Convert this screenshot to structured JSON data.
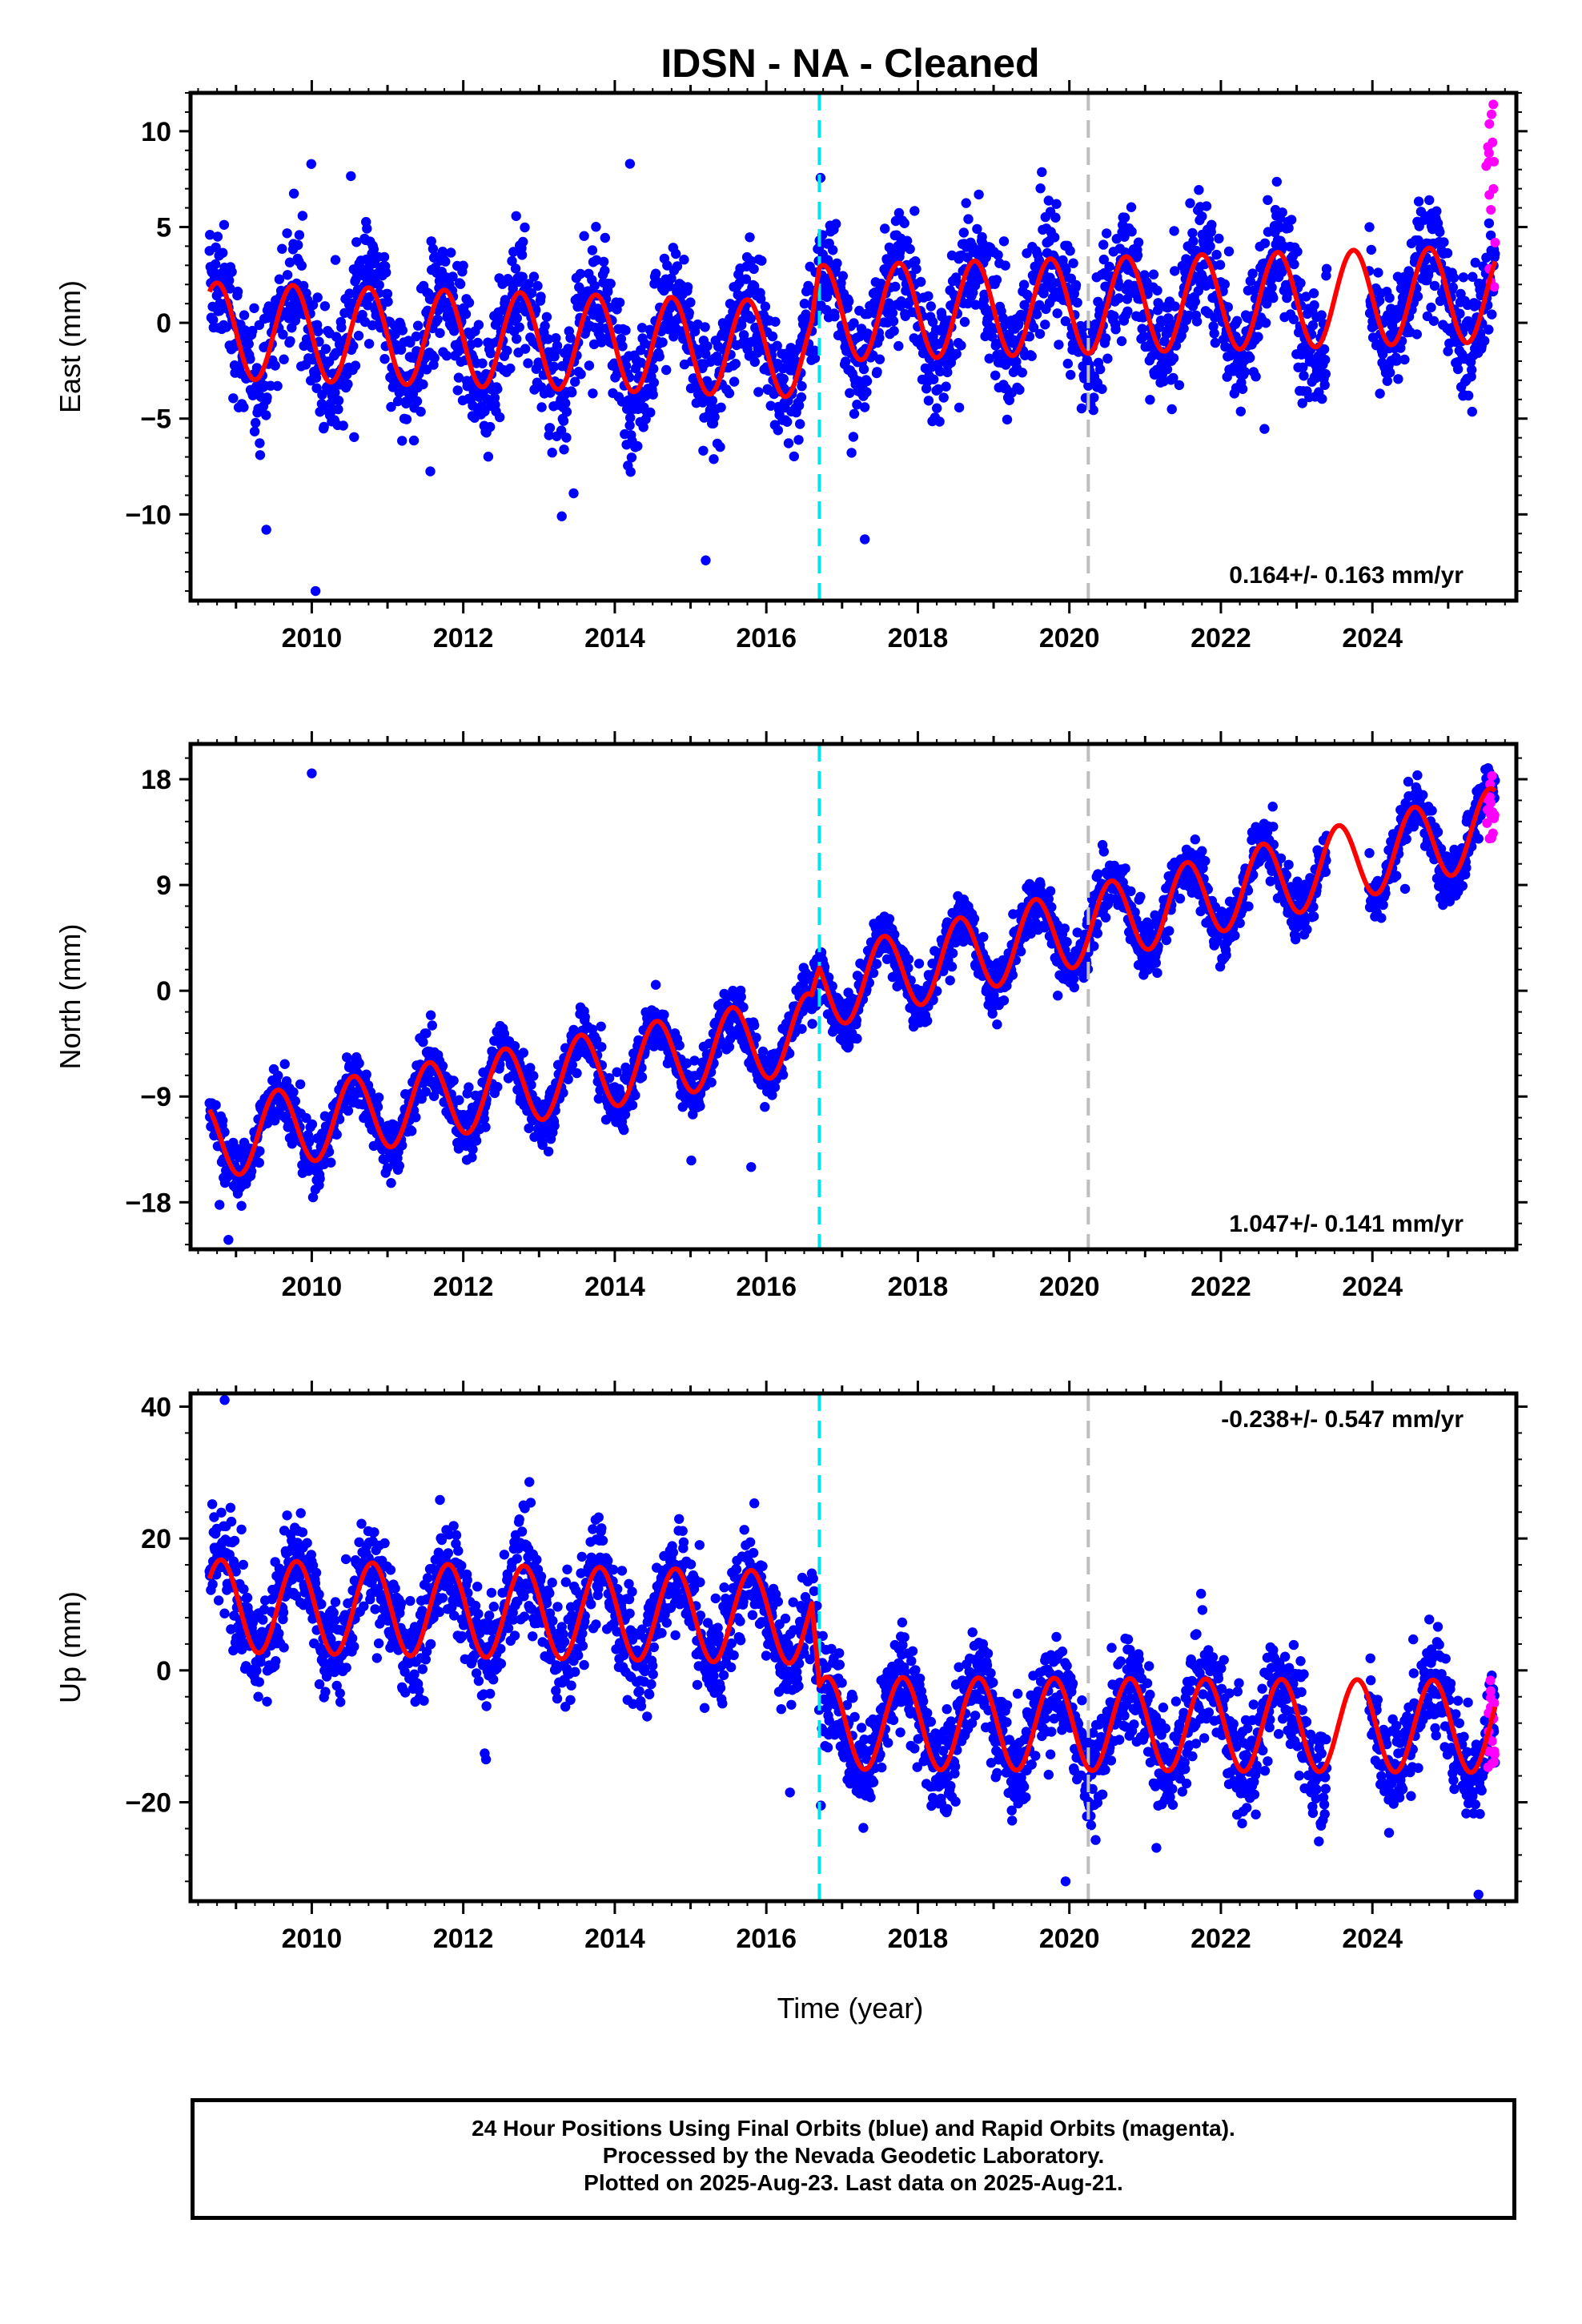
{
  "title": "IDSN  - NA - Cleaned",
  "xlabel": "Time (year)",
  "x_ticks": [
    "2010",
    "2012",
    "2014",
    "2016",
    "2018",
    "2020",
    "2022",
    "2024"
  ],
  "colors": {
    "final_orbits": "#0000ff",
    "rapid_orbits": "#ff00ff",
    "model": "#ff0000",
    "event_cyan": "#00e5ee",
    "event_gray": "#bebebe"
  },
  "caption": {
    "line1": "24 Hour Positions Using Final Orbits (blue) and Rapid Orbits (magenta).",
    "line2": "Processed by the Nevada Geodetic Laboratory.",
    "line3": "Plotted on 2025-Aug-23. Last data on 2025-Aug-21."
  },
  "chart_data": [
    {
      "type": "scatter",
      "component": "east",
      "ylabel": "East (mm)",
      "y_ticks": [
        "10",
        "5",
        "0",
        "−5",
        "−10"
      ],
      "y_tick_values": [
        10,
        5,
        0,
        -5,
        -10
      ],
      "xlim": [
        2008.4,
        2025.9
      ],
      "ylim": [
        -14.5,
        12
      ],
      "rate_text": "0.164+/- 0.163 mm/yr",
      "rate_position": "bottom-right",
      "event_lines": [
        {
          "x": 2016.7,
          "color": "cyan"
        },
        {
          "x": 2020.25,
          "color": "gray"
        }
      ],
      "data_start": 2008.65,
      "data_end": 2025.62,
      "gap": [
        2023.4,
        2023.95
      ],
      "series": [
        {
          "kind": "final_orbits",
          "model": {
            "trend": [
              [
                2008.65,
                -0.4
              ],
              [
                2016.6,
                -1.4
              ],
              [
                2016.7,
                0.5
              ],
              [
                2025.62,
                1.5
              ]
            ],
            "amplitude": 2.5,
            "peak_phase": 0.75
          },
          "scatter_sd": 1.6,
          "outliers": [
            [
              2010.05,
              -14
            ],
            [
              2014.2,
              8.3
            ],
            [
              2015.2,
              -12.4
            ],
            [
              2017.3,
              -11.3
            ],
            [
              2013.3,
              -10.1
            ],
            [
              2009.4,
              -10.8
            ]
          ]
        },
        {
          "kind": "rapid_orbits",
          "x_range": [
            2025.5,
            2025.62
          ],
          "y_range": [
            1,
            11.5
          ]
        }
      ]
    },
    {
      "type": "scatter",
      "component": "north",
      "ylabel": "North (mm)",
      "y_ticks": [
        "18",
        "9",
        "0",
        "−9",
        "−18"
      ],
      "y_tick_values": [
        18,
        9,
        0,
        -9,
        -18
      ],
      "xlim": [
        2008.4,
        2025.9
      ],
      "ylim": [
        -22,
        21
      ],
      "rate_text": "1.047+/- 0.141 mm/yr",
      "rate_position": "bottom-right",
      "event_lines": [
        {
          "x": 2016.7,
          "color": "cyan"
        },
        {
          "x": 2020.25,
          "color": "gray"
        }
      ],
      "data_start": 2008.65,
      "data_end": 2025.62,
      "gap": [
        2023.4,
        2023.95
      ],
      "series": [
        {
          "kind": "final_orbits",
          "model": {
            "trend": [
              [
                2008.65,
                -12.8
              ],
              [
                2016.6,
                -3.5
              ],
              [
                2016.7,
                0.0
              ],
              [
                2025.62,
                14.0
              ]
            ],
            "amplitude": 3.3,
            "peak_phase": 0.55
          },
          "scatter_sd": 1.2,
          "outliers": [
            [
              2010.0,
              18.5
            ],
            [
              2008.9,
              -21.2
            ],
            [
              2015.8,
              -15
            ]
          ]
        },
        {
          "kind": "rapid_orbits",
          "x_range": [
            2025.5,
            2025.62
          ],
          "y_range": [
            12,
            19
          ]
        }
      ]
    },
    {
      "type": "scatter",
      "component": "up",
      "ylabel": "Up (mm)",
      "y_ticks": [
        "40",
        "20",
        "0",
        "−20"
      ],
      "y_tick_values": [
        40,
        20,
        0,
        -20
      ],
      "xlim": [
        2008.4,
        2025.9
      ],
      "ylim": [
        -35,
        42
      ],
      "rate_text": "-0.238+/- 0.547 mm/yr",
      "rate_position": "top-right",
      "event_lines": [
        {
          "x": 2016.7,
          "color": "cyan"
        },
        {
          "x": 2020.25,
          "color": "gray"
        }
      ],
      "data_start": 2008.65,
      "data_end": 2025.62,
      "gap": [
        2023.4,
        2023.95
      ],
      "series": [
        {
          "kind": "final_orbits",
          "model": {
            "trend": [
              [
                2008.65,
                9.8
              ],
              [
                2016.6,
                8.0
              ],
              [
                2016.7,
                -8.0
              ],
              [
                2025.62,
                -8.5
              ]
            ],
            "amplitude": 7.0,
            "peak_phase": 0.8
          },
          "scatter_sd": 4.0,
          "outliers": [
            [
              2008.85,
              41
            ],
            [
              2012.3,
              -13.5
            ],
            [
              2016.72,
              -20.5
            ],
            [
              2019.95,
              -32
            ],
            [
              2025.4,
              -34
            ]
          ]
        },
        {
          "kind": "rapid_orbits",
          "x_range": [
            2025.5,
            2025.62
          ],
          "y_range": [
            -16,
            -1
          ]
        }
      ]
    }
  ]
}
